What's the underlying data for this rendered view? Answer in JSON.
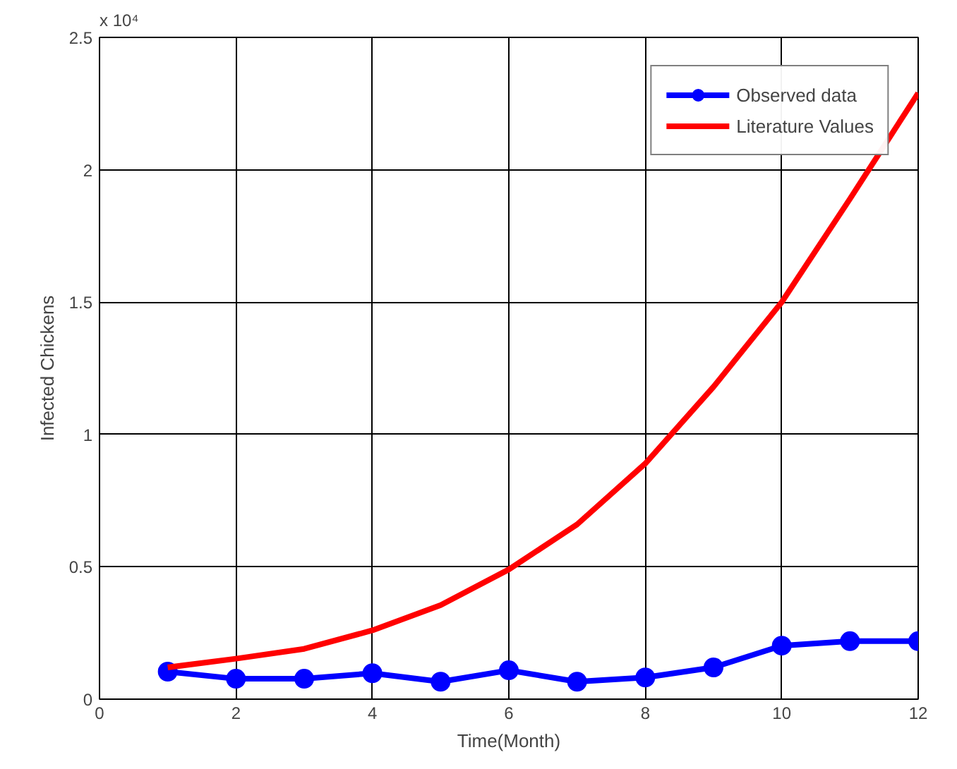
{
  "chart_data": {
    "type": "line",
    "xlabel": "Time(Month)",
    "ylabel": "Infected Chickens",
    "annotations": [
      "x 10⁴"
    ],
    "x": [
      1,
      2,
      3,
      4,
      5,
      6,
      7,
      8,
      9,
      10,
      11,
      12
    ],
    "series": [
      {
        "name": "Observed data",
        "color": "#0000ff",
        "marker": "circle",
        "values": [
          0.104,
          0.077,
          0.077,
          0.098,
          0.066,
          0.109,
          0.066,
          0.082,
          0.12,
          0.202,
          0.219,
          0.219
        ]
      },
      {
        "name": "Literature Values",
        "color": "#ff0000",
        "marker": "none",
        "values": [
          0.12,
          0.153,
          0.19,
          0.26,
          0.355,
          0.49,
          0.66,
          0.89,
          1.18,
          1.5,
          1.89,
          2.29
        ]
      }
    ],
    "xlim": [
      0,
      12
    ],
    "xticks": [
      0,
      2,
      4,
      6,
      8,
      10,
      12
    ],
    "ylim": [
      0,
      2.5
    ],
    "yticks": [
      0,
      0.5,
      1,
      1.5,
      2,
      2.5
    ],
    "grid": true,
    "legend": "top right",
    "line_style": "solid"
  }
}
